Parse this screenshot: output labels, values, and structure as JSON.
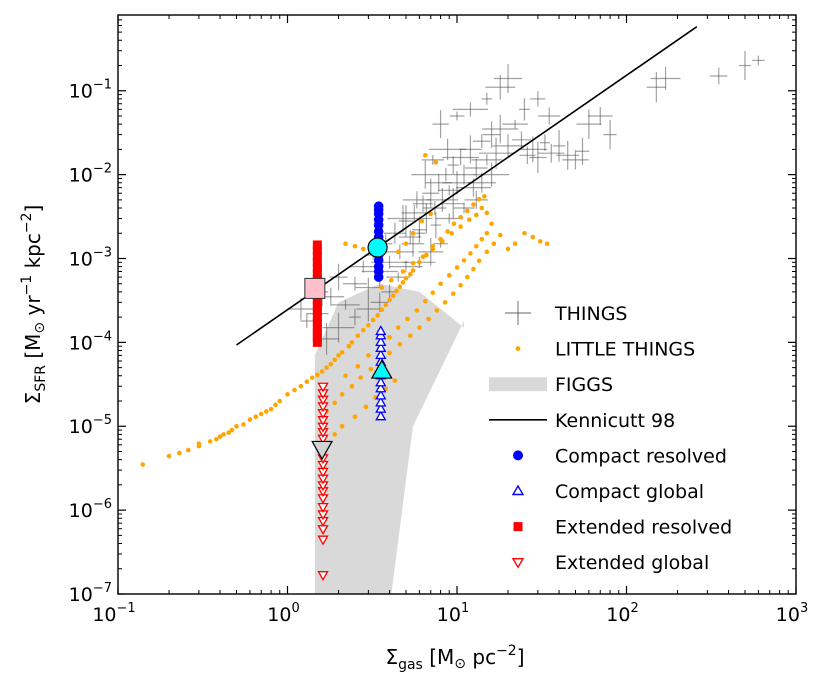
{
  "chart_data": {
    "type": "scatter",
    "xscale": "log",
    "yscale": "log",
    "xlim": [
      0.1,
      1000
    ],
    "ylim": [
      1e-07,
      0.8
    ],
    "xlabel": {
      "main": "Σ",
      "sub": "gas",
      "units": " [M",
      "sun": "⊙",
      "tail": " pc",
      "exp": "−2",
      "close": "]"
    },
    "ylabel": {
      "main": "Σ",
      "sub": "SFR",
      "units": " [M",
      "sun": "⊙",
      "tail1": " yr",
      "exp1": "−1",
      "tail2": " kpc",
      "exp2": "−2",
      "close": "]"
    },
    "xticks": [
      {
        "base": "10",
        "exp": "−1",
        "value": 0.1
      },
      {
        "base": "10",
        "exp": "0",
        "value": 1
      },
      {
        "base": "10",
        "exp": "1",
        "value": 10
      },
      {
        "base": "10",
        "exp": "2",
        "value": 100
      },
      {
        "base": "10",
        "exp": "3",
        "value": 1000
      }
    ],
    "yticks": [
      {
        "base": "10",
        "exp": "−7",
        "value": 1e-07
      },
      {
        "base": "10",
        "exp": "−6",
        "value": 1e-06
      },
      {
        "base": "10",
        "exp": "−5",
        "value": 1e-05
      },
      {
        "base": "10",
        "exp": "−4",
        "value": 0.0001
      },
      {
        "base": "10",
        "exp": "−3",
        "value": 0.001
      },
      {
        "base": "10",
        "exp": "−2",
        "value": 0.01
      },
      {
        "base": "10",
        "exp": "−1",
        "value": 0.1
      }
    ],
    "legend_position": "lower-right",
    "legend": [
      {
        "label": "THINGS",
        "marker": "plus",
        "color": "#555555"
      },
      {
        "label": "LITTLE THINGS",
        "marker": "dot",
        "color": "#FFA500"
      },
      {
        "label": "FIGGS",
        "marker": "band",
        "color": "#D9D9D9"
      },
      {
        "label": "Kennicutt 98",
        "marker": "line",
        "color": "#000000"
      },
      {
        "label": "Compact resolved",
        "marker": "circle",
        "color": "#0000FF"
      },
      {
        "label": "Compact global",
        "marker": "triangle-up-open",
        "color": "#0000FF"
      },
      {
        "label": "Extended resolved",
        "marker": "square",
        "color": "#FF0000"
      },
      {
        "label": "Extended global",
        "marker": "triangle-down-open",
        "color": "#FF0000"
      }
    ],
    "kennicutt98": {
      "x": [
        0.5,
        260
      ],
      "y": [
        9.3e-05,
        0.58
      ]
    },
    "figgs_polygon": {
      "x": [
        1.45,
        1.45,
        2.0,
        3.5,
        6.0,
        11.0,
        11.0,
        5.5,
        4.1
      ],
      "y": [
        1e-07,
        7e-05,
        0.0003,
        0.0005,
        0.0004,
        0.00015,
        0.00018,
        1e-05,
        1e-07
      ]
    },
    "things_errorbar_color": "#555555",
    "things_points": [
      [
        1.2,
        0.00025
      ],
      [
        1.3,
        0.00018
      ],
      [
        1.5,
        0.00022
      ],
      [
        1.6,
        0.0004
      ],
      [
        1.8,
        0.00035
      ],
      [
        2.0,
        0.0006
      ],
      [
        2.2,
        0.00028
      ],
      [
        2.5,
        0.0005
      ],
      [
        2.8,
        0.0008
      ],
      [
        3.0,
        0.00045
      ],
      [
        3.2,
        0.0011
      ],
      [
        3.5,
        0.0007
      ],
      [
        3.8,
        0.0015
      ],
      [
        4.0,
        0.0009
      ],
      [
        4.3,
        0.002
      ],
      [
        4.6,
        0.0012
      ],
      [
        5.0,
        0.0028
      ],
      [
        5.3,
        0.0018
      ],
      [
        5.6,
        0.0035
      ],
      [
        6.0,
        0.0022
      ],
      [
        6.3,
        0.0045
      ],
      [
        6.6,
        0.003
      ],
      [
        7.0,
        0.006
      ],
      [
        7.4,
        0.004
      ],
      [
        7.8,
        0.008
      ],
      [
        8.2,
        0.005
      ],
      [
        8.6,
        0.01
      ],
      [
        9.0,
        0.0065
      ],
      [
        9.5,
        0.013
      ],
      [
        10.0,
        0.008
      ],
      [
        10.5,
        0.016
      ],
      [
        11.0,
        0.01
      ],
      [
        12.0,
        0.02
      ],
      [
        13.0,
        0.012
      ],
      [
        14.0,
        0.025
      ],
      [
        15.0,
        0.015
      ],
      [
        16.0,
        0.03
      ],
      [
        17.0,
        0.018
      ],
      [
        18.0,
        0.035
      ],
      [
        20.0,
        0.022
      ],
      [
        22.0,
        0.04
      ],
      [
        24.0,
        0.026
      ],
      [
        26.0,
        0.017
      ],
      [
        28.0,
        0.02
      ],
      [
        30.0,
        0.016
      ],
      [
        33.0,
        0.024
      ],
      [
        36.0,
        0.018
      ],
      [
        40.0,
        0.022
      ],
      [
        45.0,
        0.017
      ],
      [
        50.0,
        0.015
      ],
      [
        55.0,
        0.019
      ],
      [
        12.0,
        0.06
      ],
      [
        15.0,
        0.08
      ],
      [
        18.0,
        0.11
      ],
      [
        20.0,
        0.14
      ],
      [
        8.0,
        0.04
      ],
      [
        10.0,
        0.05
      ],
      [
        6.0,
        0.002
      ],
      [
        7.0,
        0.0012
      ],
      [
        5.0,
        0.0008
      ],
      [
        4.5,
        0.0006
      ],
      [
        3.5,
        0.0003
      ],
      [
        2.5,
        0.0002
      ],
      [
        4.0,
        0.0004
      ],
      [
        6.0,
        0.0009
      ],
      [
        8.0,
        0.0015
      ],
      [
        9.0,
        0.003
      ],
      [
        11.0,
        0.004
      ],
      [
        13.0,
        0.005
      ],
      [
        7.5,
        0.0025
      ],
      [
        5.5,
        0.0015
      ],
      [
        150.0,
        0.11
      ],
      [
        170.0,
        0.14
      ],
      [
        350.0,
        0.15
      ],
      [
        500.0,
        0.2
      ],
      [
        600.0,
        0.23
      ],
      [
        30.0,
        0.08
      ],
      [
        25.0,
        0.06
      ],
      [
        35.0,
        0.05
      ],
      [
        60.0,
        0.04
      ],
      [
        70.0,
        0.05
      ],
      [
        80.0,
        0.03
      ],
      [
        14.0,
        0.008
      ],
      [
        16.0,
        0.01
      ],
      [
        9.5,
        0.0045
      ],
      [
        12.5,
        0.007
      ],
      [
        3.0,
        0.00025
      ],
      [
        2.0,
        0.00015
      ],
      [
        1.7,
        0.00011
      ],
      [
        6.5,
        0.01
      ],
      [
        7.2,
        0.015
      ],
      [
        8.8,
        0.02
      ],
      [
        5.8,
        0.005
      ],
      [
        4.8,
        0.003
      ]
    ],
    "little_things_points": [
      [
        0.14,
        3.5e-06
      ],
      [
        0.2,
        4.4e-06
      ],
      [
        0.23,
        4.8e-06
      ],
      [
        0.26,
        5.2e-06
      ],
      [
        0.3,
        5.8e-06
      ],
      [
        0.35,
        6.6e-06
      ],
      [
        0.4,
        7.5e-06
      ],
      [
        0.45,
        8.4e-06
      ],
      [
        0.5,
        1e-05
      ],
      [
        0.6,
        1.2e-05
      ],
      [
        0.7,
        1.4e-05
      ],
      [
        0.8,
        1.6e-05
      ],
      [
        0.9,
        2e-05
      ],
      [
        1.0,
        2.4e-05
      ],
      [
        1.2,
        3e-05
      ],
      [
        1.4,
        3.8e-05
      ],
      [
        1.6,
        4.5e-05
      ],
      [
        1.8,
        5.5e-05
      ],
      [
        2.0,
        7e-05
      ],
      [
        2.3,
        9e-05
      ],
      [
        2.6,
        0.00012
      ],
      [
        3.0,
        0.00016
      ],
      [
        3.4,
        0.00021
      ],
      [
        3.8,
        0.00028
      ],
      [
        4.2,
        0.00036
      ],
      [
        4.6,
        0.00046
      ],
      [
        5.0,
        0.00058
      ],
      [
        5.5,
        0.00072
      ],
      [
        6.0,
        0.0009
      ],
      [
        6.6,
        0.0011
      ],
      [
        7.2,
        0.0014
      ],
      [
        8.0,
        0.0017
      ],
      [
        8.8,
        0.0021
      ],
      [
        9.6,
        0.0026
      ],
      [
        10.5,
        0.0031
      ],
      [
        11.5,
        0.0037
      ],
      [
        12.5,
        0.0044
      ],
      [
        13.5,
        0.0051
      ],
      [
        2.2,
        4e-05
      ],
      [
        2.6,
        5.2e-05
      ],
      [
        3.0,
        7e-05
      ],
      [
        3.5,
        9e-05
      ],
      [
        4.0,
        0.000115
      ],
      [
        4.5,
        0.00015
      ],
      [
        5.1,
        0.00019
      ],
      [
        5.8,
        0.00024
      ],
      [
        6.5,
        0.00031
      ],
      [
        7.2,
        0.00039
      ],
      [
        8.0,
        0.0005
      ],
      [
        9.0,
        0.00063
      ],
      [
        10.0,
        0.00078
      ],
      [
        11.0,
        0.00095
      ],
      [
        12.0,
        0.00115
      ],
      [
        13.0,
        0.0014
      ],
      [
        14.0,
        0.0017
      ],
      [
        15.0,
        0.002
      ],
      [
        1.7,
        1.5e-05
      ],
      [
        1.9,
        1.9e-05
      ],
      [
        2.1,
        2.4e-05
      ],
      [
        2.4,
        3e-05
      ],
      [
        2.7,
        3.8e-05
      ],
      [
        3.1,
        4.8e-05
      ],
      [
        3.5,
        6e-05
      ],
      [
        4.0,
        7.5e-05
      ],
      [
        4.6,
        9.5e-05
      ],
      [
        5.3,
        0.00012
      ],
      [
        6.0,
        0.00015
      ],
      [
        6.8,
        0.00019
      ],
      [
        7.6,
        0.00024
      ],
      [
        8.5,
        0.0003
      ],
      [
        9.5,
        0.00038
      ],
      [
        10.5,
        0.00048
      ],
      [
        11.5,
        0.0006
      ],
      [
        12.5,
        0.00075
      ],
      [
        13.5,
        0.00094
      ],
      [
        15.0,
        0.0012
      ],
      [
        16.5,
        0.0015
      ],
      [
        18.0,
        0.0019
      ],
      [
        20.0,
        0.0013
      ],
      [
        22.0,
        0.0015
      ],
      [
        25.0,
        0.002
      ],
      [
        28.0,
        0.0018
      ],
      [
        31.0,
        0.0016
      ],
      [
        34.0,
        0.0015
      ],
      [
        16.0,
        0.0026
      ],
      [
        15.0,
        0.0035
      ],
      [
        14.5,
        0.0055
      ],
      [
        14.0,
        0.004
      ],
      [
        6.5,
        0.017
      ],
      [
        7.5,
        0.014
      ],
      [
        2.5,
        0.0014
      ],
      [
        2.2,
        0.0015
      ],
      [
        2.8,
        0.0013
      ],
      [
        4.5,
        0.0012
      ],
      [
        5.0,
        0.0015
      ],
      [
        5.5,
        0.002
      ],
      [
        6.2,
        0.0028
      ],
      [
        7.0,
        0.0034
      ],
      [
        3.6,
        0.00045
      ],
      [
        4.1,
        0.00055
      ],
      [
        4.8,
        0.0007
      ],
      [
        5.5,
        0.00088
      ],
      [
        6.3,
        0.00105
      ],
      [
        7.2,
        0.0013
      ],
      [
        8.2,
        0.0016
      ],
      [
        9.3,
        0.002
      ],
      [
        10.5,
        0.0024
      ],
      [
        11.8,
        0.0029
      ],
      [
        13.0,
        0.0033
      ],
      [
        1.9,
        8e-06
      ],
      [
        2.1,
        1e-05
      ],
      [
        2.5,
        1.3e-05
      ],
      [
        2.9,
        1.7e-05
      ],
      [
        3.3,
        2.2e-05
      ],
      [
        3.8,
        2.8e-05
      ],
      [
        4.3,
        3.5e-05
      ],
      [
        0.55,
        1.05e-05
      ],
      [
        0.65,
        1.3e-05
      ],
      [
        0.75,
        1.5e-05
      ],
      [
        0.85,
        1.8e-05
      ],
      [
        0.3,
        6.2e-06
      ],
      [
        0.38,
        7e-06
      ],
      [
        0.42,
        8e-06
      ],
      [
        0.47,
        9e-06
      ],
      [
        1.1,
        2.7e-05
      ],
      [
        1.3,
        3.4e-05
      ],
      [
        1.5,
        4.1e-05
      ],
      [
        1.7,
        5e-05
      ],
      [
        1.9,
        6.2e-05
      ],
      [
        2.1,
        7.6e-05
      ],
      [
        2.4,
        0.0001
      ],
      [
        2.8,
        0.00014
      ],
      [
        3.2,
        0.000185
      ],
      [
        3.6,
        0.000245
      ],
      [
        4.0,
        0.00032
      ],
      [
        4.4,
        0.00041
      ],
      [
        4.8,
        0.00052
      ],
      [
        5.3,
        0.00065
      ]
    ],
    "compact_resolved": {
      "x": 3.45,
      "y": [
        0.0006,
        0.0007,
        0.0008,
        0.00095,
        0.0011,
        0.0013,
        0.0015,
        0.0018,
        0.0021,
        0.0025,
        0.0029,
        0.0034,
        0.0038,
        0.0042
      ],
      "color": "#0000FF"
    },
    "compact_resolved_mean": {
      "x": 3.4,
      "y": 0.00135,
      "color": "#00FFFF"
    },
    "compact_global": {
      "x": 3.55,
      "y": [
        1.3e-05,
        1.6e-05,
        1.9e-05,
        2.3e-05,
        2.8e-05,
        3.3e-05,
        4e-05,
        4.8e-05,
        5.8e-05,
        7e-05,
        8.5e-05,
        0.0001,
        0.00012,
        0.000135
      ],
      "color": "#0000FF"
    },
    "compact_global_mean": {
      "x": 3.6,
      "y": 4.5e-05,
      "color": "#00FFFF"
    },
    "extended_resolved": {
      "x": 1.5,
      "y": [
        0.0001,
        0.000115,
        0.00013,
        0.00015,
        0.000175,
        0.0002,
        0.000235,
        0.00027,
        0.00031,
        0.00036,
        0.00042,
        0.00049,
        0.00057,
        0.00066,
        0.00077,
        0.0009,
        0.00105,
        0.00125,
        0.00145
      ],
      "color": "#FF0000"
    },
    "extended_resolved_mean": {
      "x": 1.45,
      "y": 0.00044,
      "color": "#FFC0CB"
    },
    "extended_global": {
      "x": 1.62,
      "y": [
        1.7e-07,
        4.5e-07,
        6e-07,
        7.5e-07,
        9e-07,
        1.1e-06,
        1.4e-06,
        1.7e-06,
        2e-06,
        2.4e-06,
        2.9e-06,
        3.5e-06,
        4.2e-06,
        5e-06,
        6e-06,
        7.2e-06,
        8.6e-06,
        1e-05,
        1.2e-05,
        1.45e-05,
        1.75e-05,
        2.1e-05,
        2.5e-05,
        3e-05
      ],
      "color": "#FF0000"
    },
    "extended_global_mean": {
      "x": 1.6,
      "y": 5.5e-06,
      "color": "#D3D3D3"
    }
  }
}
